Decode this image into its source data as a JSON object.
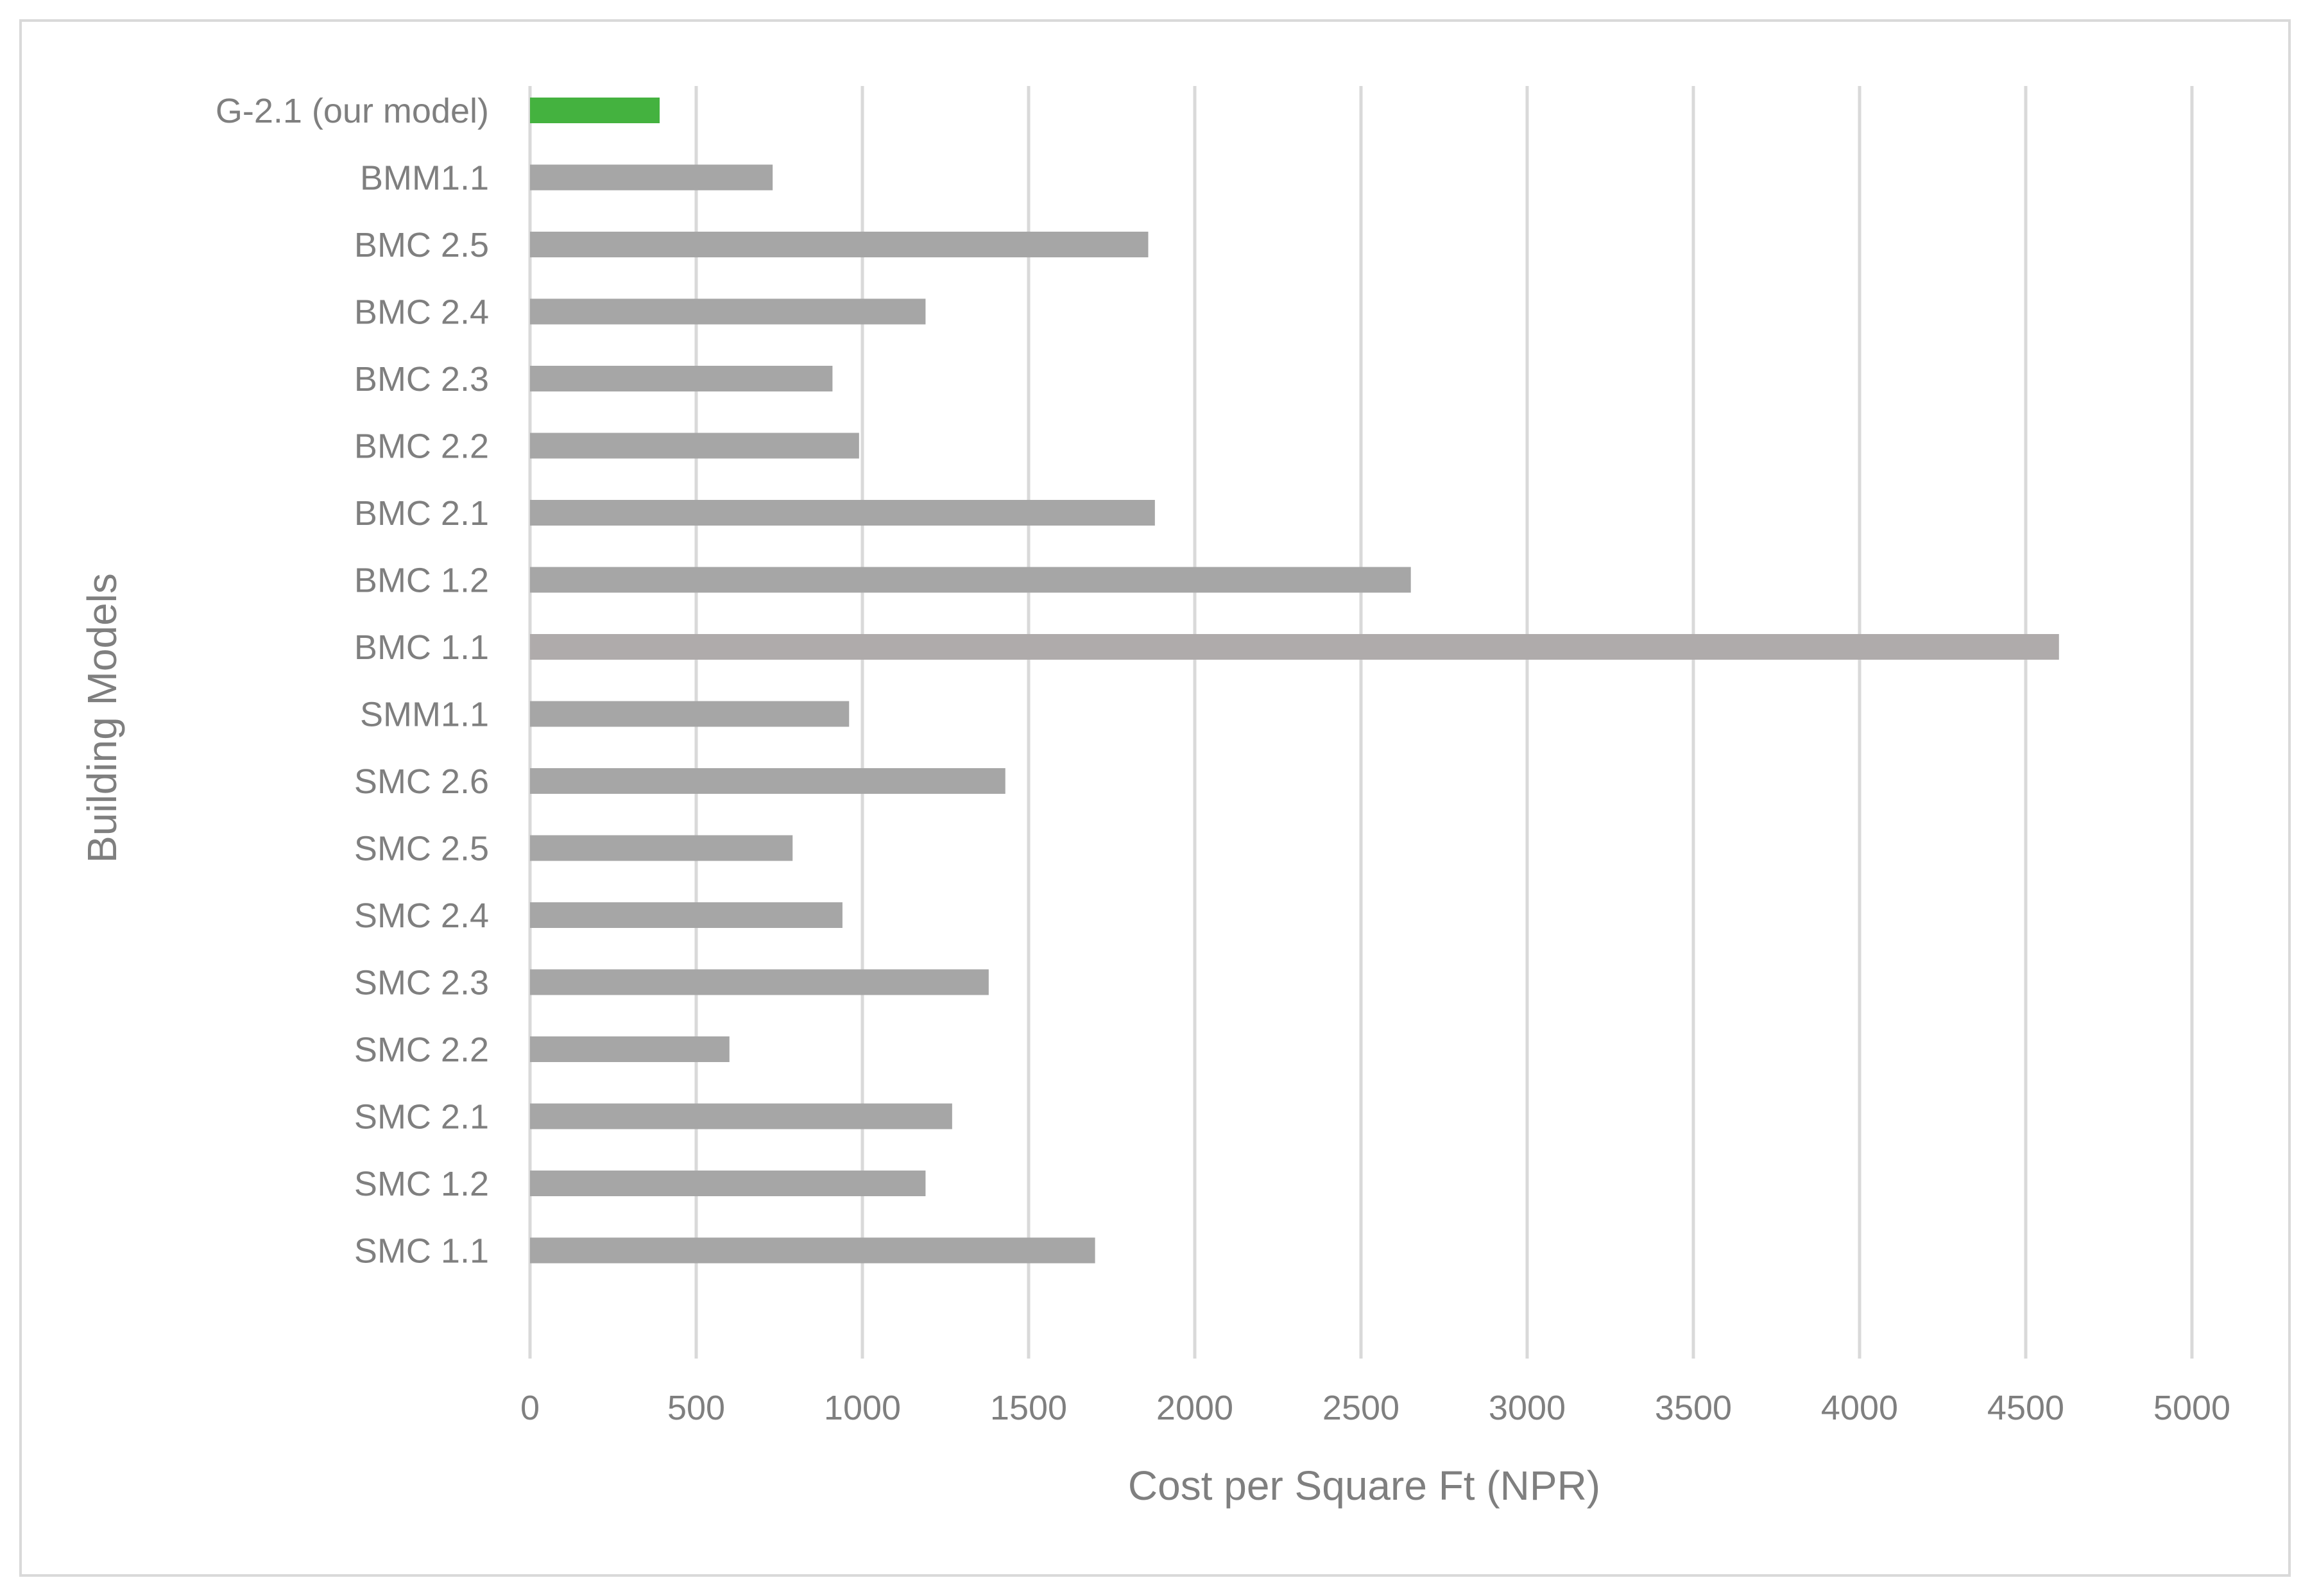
{
  "chart_data": {
    "type": "bar",
    "orientation": "horizontal",
    "title": "",
    "xlabel": "Cost per Square Ft (NPR)",
    "ylabel": "Building Models",
    "xlim": [
      0,
      5000
    ],
    "xticks": [
      0,
      500,
      1000,
      1500,
      2000,
      2500,
      3000,
      3500,
      4000,
      4500,
      5000
    ],
    "grid": "vertical",
    "legend": "none",
    "categories": [
      "G-2.1 (our model)",
      "BMM1.1",
      "BMC 2.5",
      "BMC 2.4",
      "BMC 2.3",
      "BMC 2.2",
      "BMC 2.1",
      "BMC 1.2",
      "BMC 1.1",
      "SMM1.1",
      "SMC 2.6",
      "SMC 2.5",
      "SMC 2.4",
      "SMC 2.3",
      "SMC 2.2",
      "SMC 2.1",
      "SMC 1.2",
      "SMC 1.1"
    ],
    "values": [
      390,
      730,
      1860,
      1190,
      910,
      990,
      1880,
      2650,
      4600,
      960,
      1430,
      790,
      940,
      1380,
      600,
      1270,
      1190,
      1700
    ],
    "colors": [
      "#44b23f",
      "#a6a6a6",
      "#a6a6a6",
      "#a6a6a6",
      "#a6a6a6",
      "#a6a6a6",
      "#a6a6a6",
      "#a6a6a6",
      "#afabab",
      "#a6a6a6",
      "#a6a6a6",
      "#a6a6a6",
      "#a6a6a6",
      "#a6a6a6",
      "#a6a6a6",
      "#a6a6a6",
      "#a6a6a6",
      "#a6a6a6"
    ],
    "grid_color": "#d9d9d9",
    "text_color": "#7f7f7f"
  }
}
